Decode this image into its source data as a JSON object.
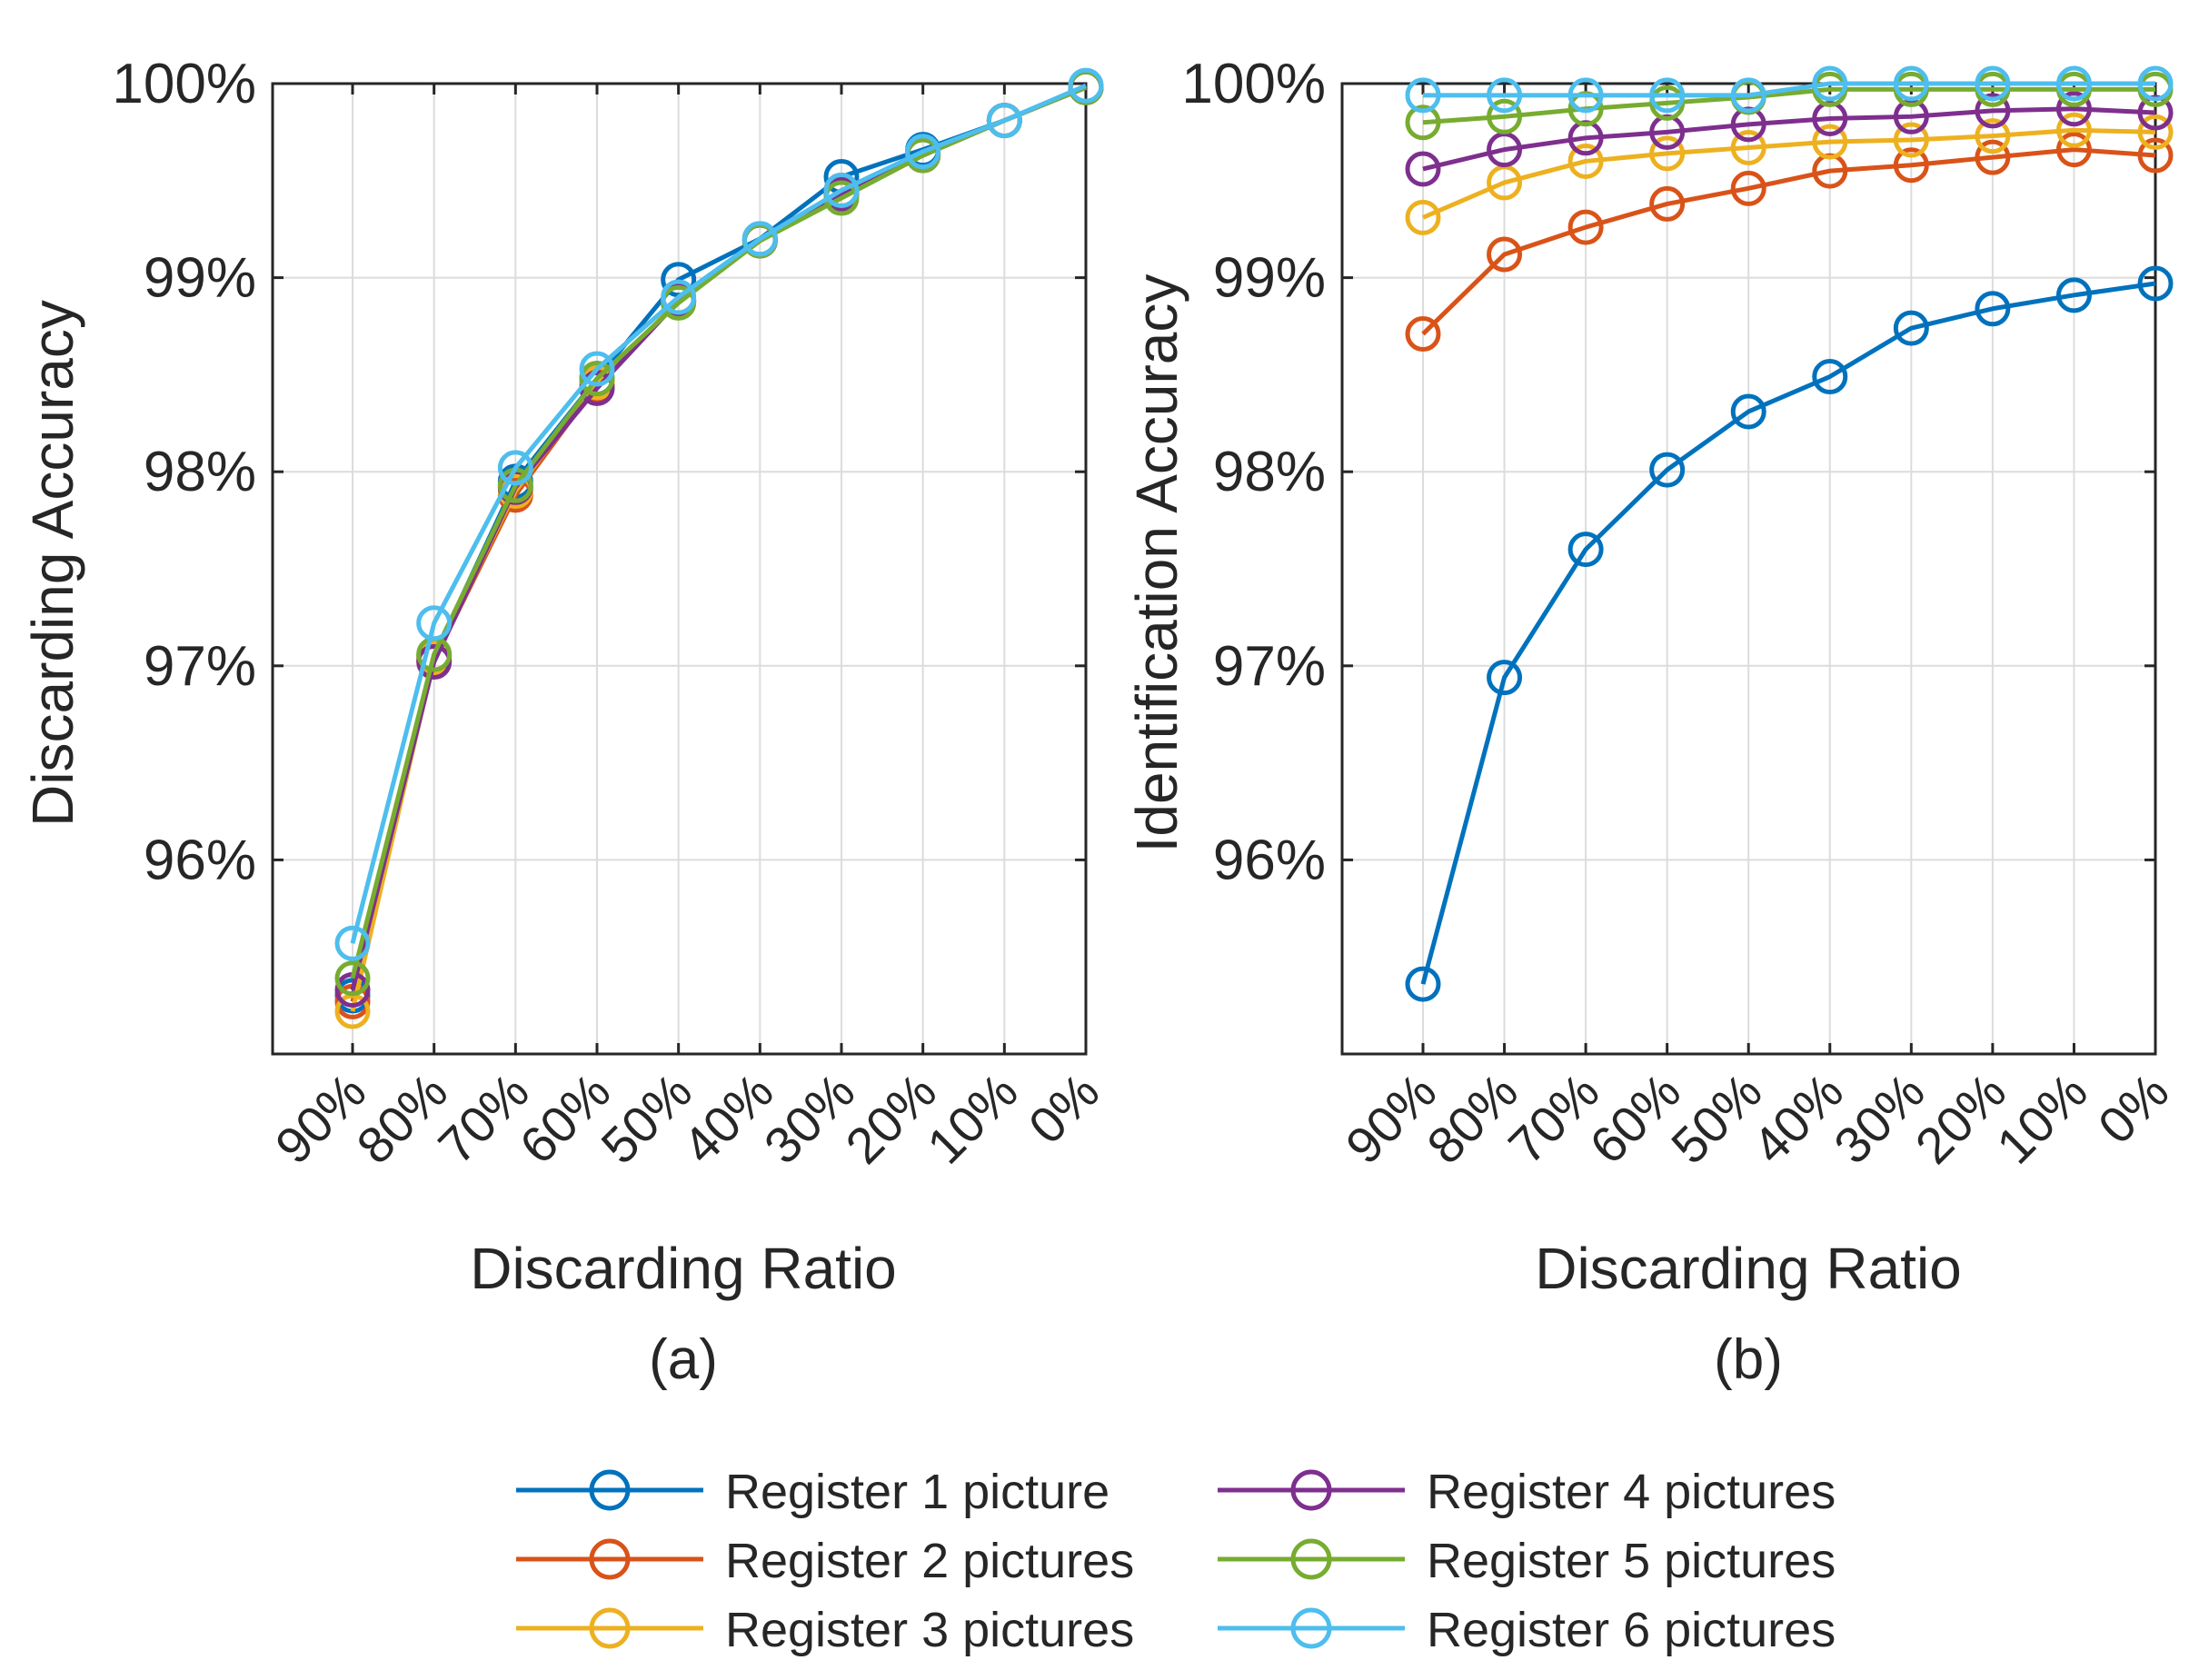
{
  "chart_data": [
    {
      "type": "line",
      "panel": "(a)",
      "xlabel": "Discarding Ratio",
      "ylabel": "Discarding Accuracy",
      "categories": [
        "90%",
        "80%",
        "70%",
        "60%",
        "50%",
        "40%",
        "30%",
        "20%",
        "10%",
        "0%"
      ],
      "yticks": [
        96,
        97,
        98,
        99,
        100
      ],
      "ytick_labels": [
        "96%",
        "97%",
        "98%",
        "99%",
        "100%"
      ],
      "ylim": [
        95,
        100
      ],
      "grid": true,
      "series": [
        {
          "name": "Register 1 picture",
          "values": [
            95.3,
            97.05,
            97.95,
            98.48,
            98.99,
            99.2,
            99.52,
            99.66,
            99.81,
            99.98
          ]
        },
        {
          "name": "Register 2 pictures",
          "values": [
            95.27,
            97.03,
            97.88,
            98.45,
            98.88,
            99.19,
            99.45,
            99.64,
            99.81,
            99.98
          ]
        },
        {
          "name": "Register 3 pictures",
          "values": [
            95.22,
            97.04,
            97.9,
            98.46,
            98.88,
            99.19,
            99.44,
            99.64,
            99.81,
            99.98
          ]
        },
        {
          "name": "Register 4 pictures",
          "values": [
            95.33,
            97.02,
            97.92,
            98.43,
            98.88,
            99.19,
            99.43,
            99.63,
            99.81,
            99.98
          ]
        },
        {
          "name": "Register 5 pictures",
          "values": [
            95.39,
            97.06,
            97.93,
            98.48,
            98.87,
            99.19,
            99.41,
            99.63,
            99.81,
            99.98
          ]
        },
        {
          "name": "Register 6 pictures",
          "values": [
            95.57,
            97.22,
            98.02,
            98.53,
            98.9,
            99.2,
            99.45,
            99.65,
            99.81,
            99.99
          ]
        }
      ]
    },
    {
      "type": "line",
      "panel": "(b)",
      "xlabel": "Discarding Ratio",
      "ylabel": "Identification Accuracy",
      "categories": [
        "90%",
        "80%",
        "70%",
        "60%",
        "50%",
        "40%",
        "30%",
        "20%",
        "10%",
        "0%"
      ],
      "yticks": [
        96,
        97,
        98,
        99,
        100
      ],
      "ytick_labels": [
        "96%",
        "97%",
        "98%",
        "99%",
        "100%"
      ],
      "ylim": [
        95,
        100
      ],
      "grid": true,
      "series": [
        {
          "name": "Register 1 picture",
          "values": [
            95.36,
            96.94,
            97.6,
            98.01,
            98.31,
            98.49,
            98.74,
            98.84,
            98.91,
            98.97
          ]
        },
        {
          "name": "Register 2 pictures",
          "values": [
            98.71,
            99.12,
            99.26,
            99.38,
            99.46,
            99.55,
            99.58,
            99.62,
            99.66,
            99.63
          ]
        },
        {
          "name": "Register 3 pictures",
          "values": [
            99.31,
            99.49,
            99.6,
            99.64,
            99.67,
            99.7,
            99.71,
            99.73,
            99.76,
            99.75
          ]
        },
        {
          "name": "Register 4 pictures",
          "values": [
            99.56,
            99.66,
            99.72,
            99.75,
            99.79,
            99.82,
            99.83,
            99.86,
            99.87,
            99.85
          ]
        },
        {
          "name": "Register 5 pictures",
          "values": [
            99.8,
            99.83,
            99.87,
            99.9,
            99.93,
            99.97,
            99.97,
            99.97,
            99.97,
            99.97
          ]
        },
        {
          "name": "Register 6 pictures",
          "values": [
            99.94,
            99.94,
            99.94,
            99.94,
            99.94,
            100.0,
            100.0,
            100.0,
            100.0,
            100.0
          ]
        }
      ]
    }
  ],
  "legend": {
    "placement": "bottom",
    "entries": [
      "Register 1 picture",
      "Register 2 pictures",
      "Register 3 pictures",
      "Register 4 pictures",
      "Register 5 pictures",
      "Register 6 pictures"
    ]
  },
  "colors": {
    "Register 1 picture": "#0072BD",
    "Register 2 pictures": "#D95319",
    "Register 3 pictures": "#EDB120",
    "Register 4 pictures": "#7E2F8E",
    "Register 5 pictures": "#77AC30",
    "Register 6 pictures": "#4DBEEE"
  }
}
